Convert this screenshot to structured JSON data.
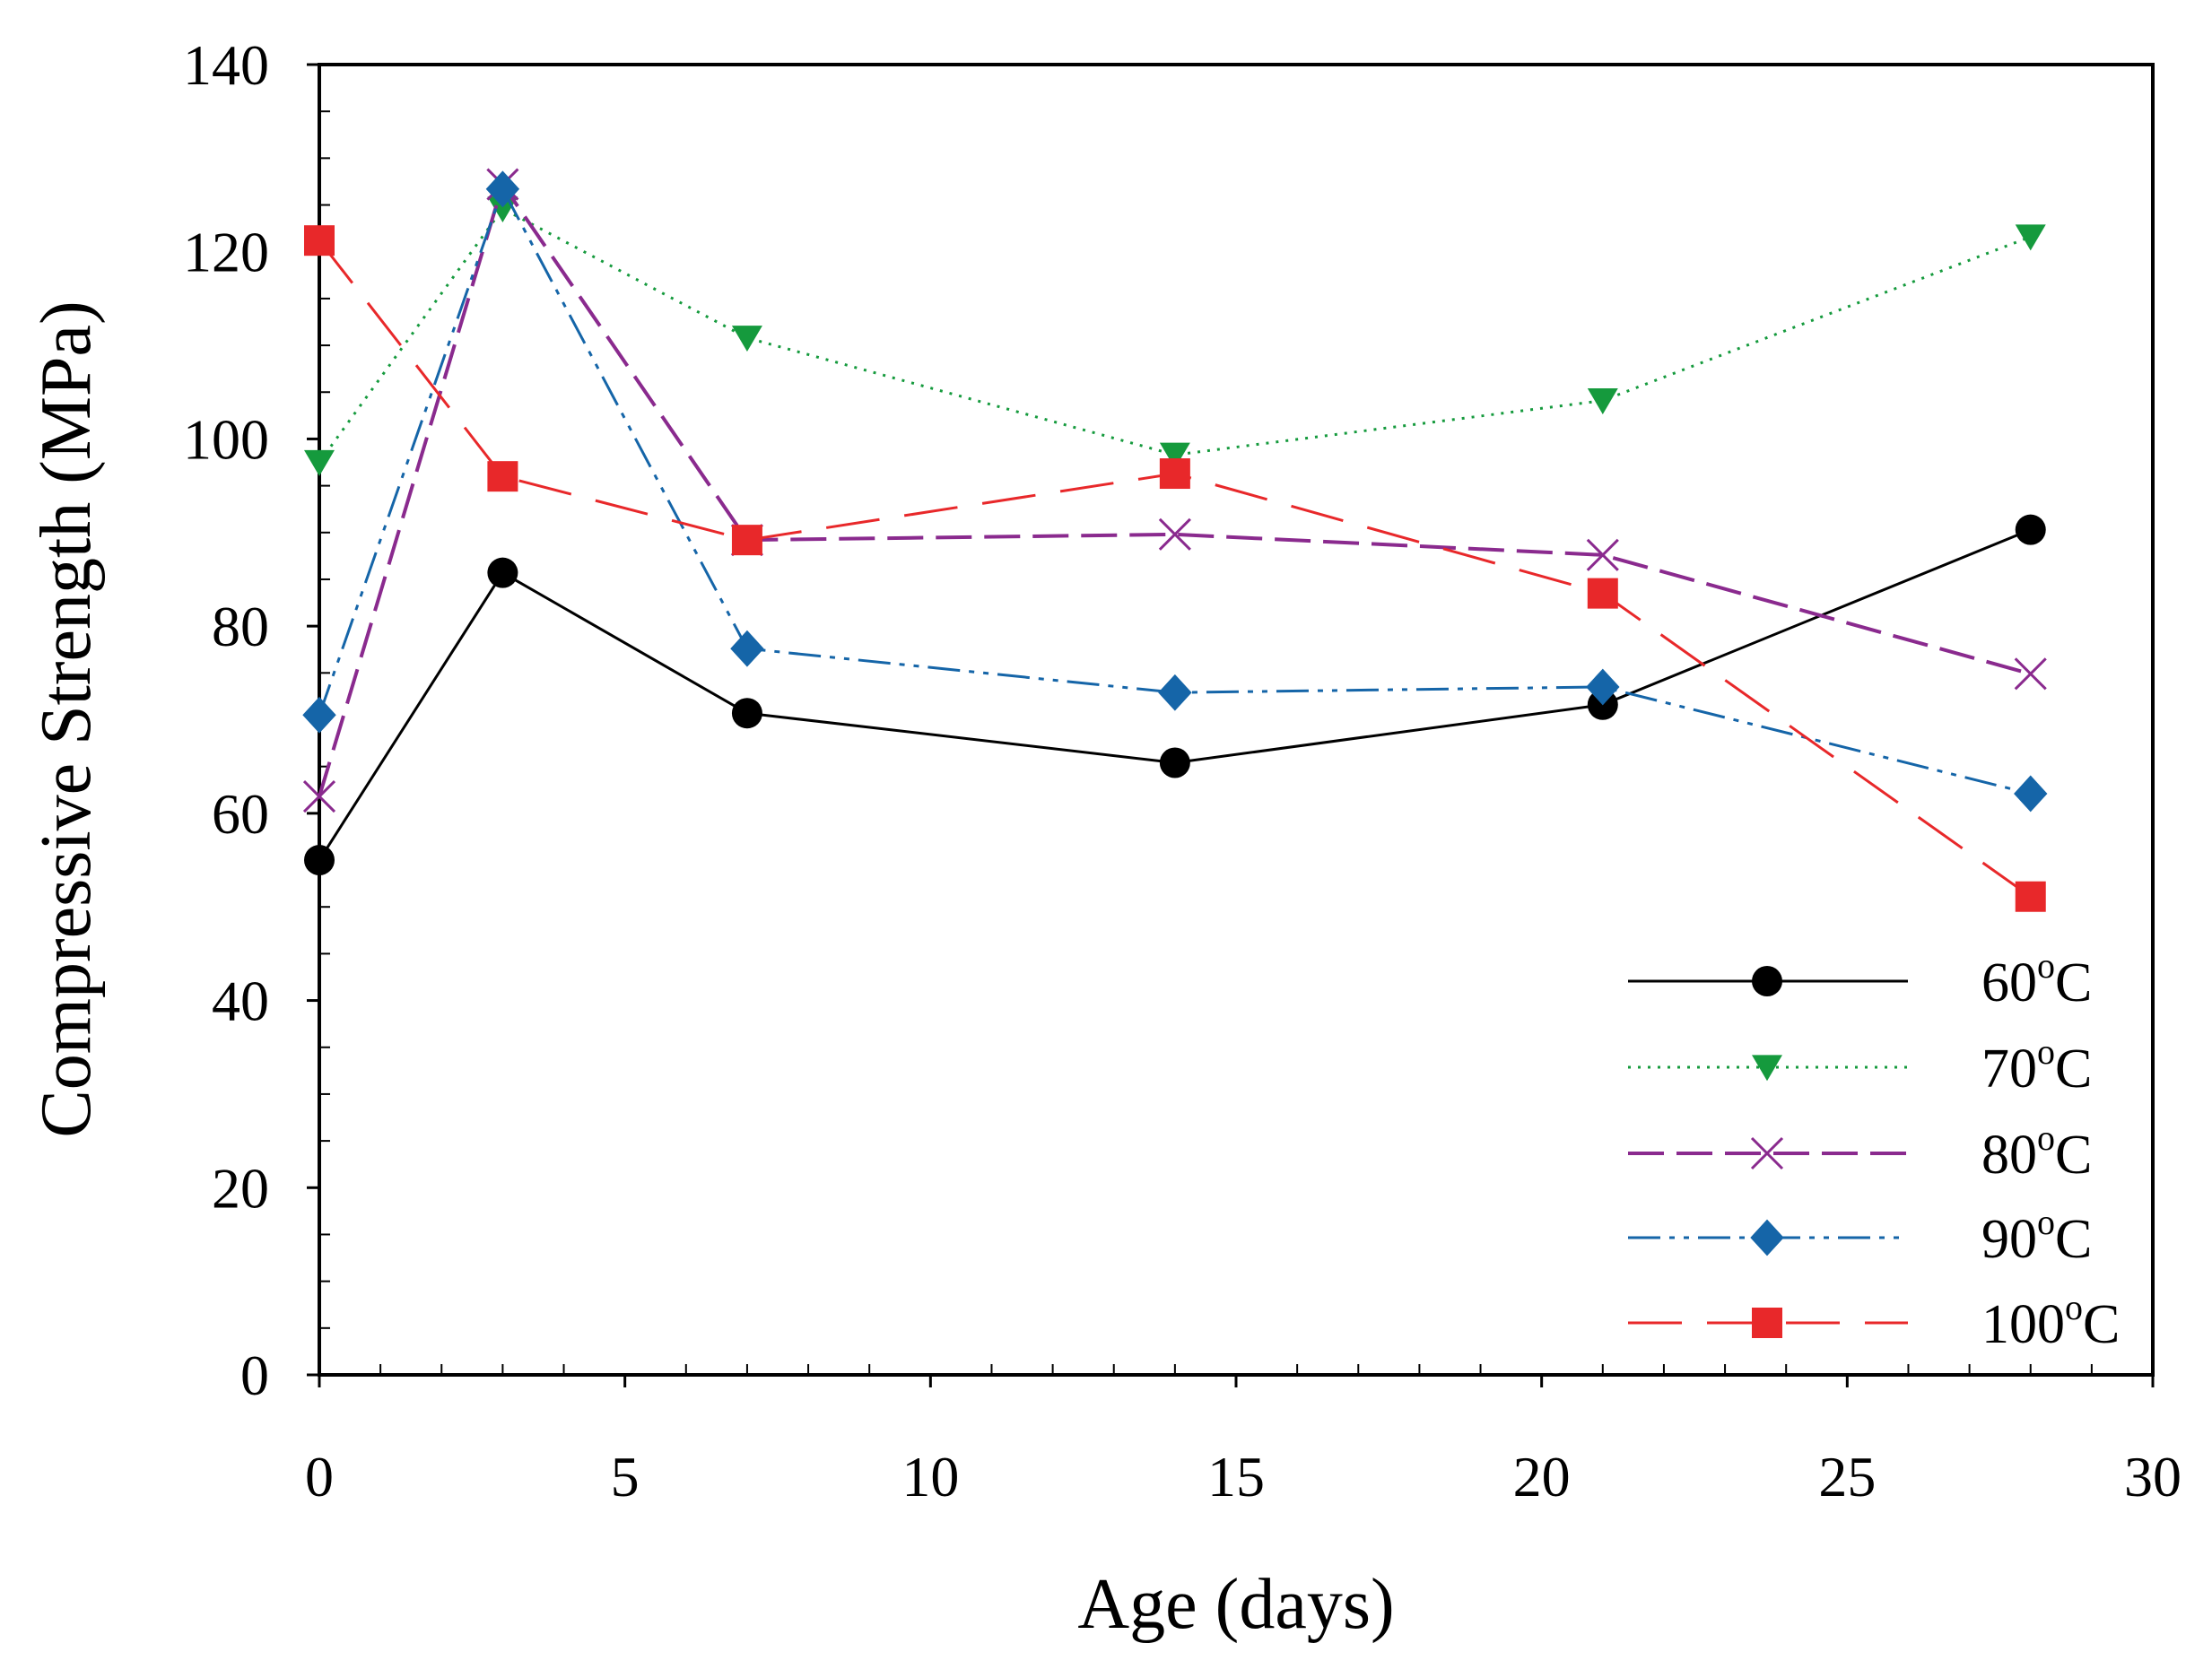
{
  "chart_data": {
    "type": "line",
    "title": "",
    "xlabel": "Age (days)",
    "ylabel": "Compressive Strength (MPa)",
    "xlim": [
      0,
      30
    ],
    "ylim": [
      0,
      140
    ],
    "xticks": [
      0,
      5,
      10,
      15,
      20,
      25,
      30
    ],
    "yticks": [
      0,
      20,
      40,
      60,
      80,
      100,
      120,
      140
    ],
    "grid": false,
    "legend_position": "bottom-right",
    "x": [
      0,
      3,
      7,
      14,
      21,
      28
    ],
    "series": [
      {
        "name": "60",
        "unit": "°C",
        "label": "60°C",
        "color": "#000000",
        "marker": "circle",
        "dash": "solid",
        "values": [
          55,
          85.7,
          70.7,
          65.4,
          71.6,
          90.3
        ]
      },
      {
        "name": "70",
        "unit": "°C",
        "label": "70°C",
        "color": "#159a3d",
        "marker": "triangle-down",
        "dash": "dotted",
        "values": [
          97.5,
          124.6,
          110.8,
          98.3,
          104.1,
          121.6
        ]
      },
      {
        "name": "80",
        "unit": "°C",
        "label": "80°C",
        "color": "#8a2a8e",
        "marker": "x",
        "dash": "dashed",
        "values": [
          61.8,
          127.2,
          89.2,
          89.8,
          87.6,
          74.9
        ]
      },
      {
        "name": "90",
        "unit": "°C",
        "label": "90°C",
        "color": "#1565a8",
        "marker": "diamond",
        "dash": "dash-dot-dot",
        "values": [
          70.5,
          126.7,
          77.6,
          72.9,
          73.5,
          62.1
        ]
      },
      {
        "name": "100",
        "unit": "°C",
        "label": "100°C",
        "color": "#e8282a",
        "marker": "square",
        "dash": "long-dash",
        "values": [
          121.2,
          96.0,
          89.2,
          96.3,
          83.5,
          51.1
        ]
      }
    ]
  }
}
